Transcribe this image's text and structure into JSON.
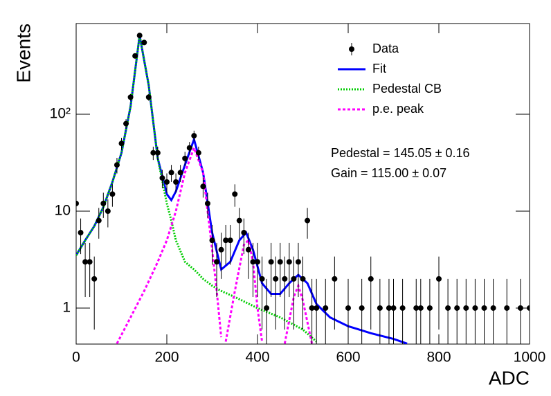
{
  "chart_data": {
    "type": "scatter",
    "x_label": "ADC",
    "y_label": "Events",
    "xlim": [
      0,
      1000
    ],
    "ylim": [
      0.425,
      863
    ],
    "log_y": true,
    "xticks": [
      0,
      200,
      400,
      600,
      800,
      1000
    ],
    "yticks": [
      1,
      10,
      {
        "value": 100,
        "label": "10²"
      }
    ],
    "legend_position": "upper right",
    "annotations": [
      "Pedestal = 145.05 ± 0.16",
      "Gain = 115.00 ± 0.07"
    ],
    "series": [
      {
        "name": "Data",
        "kind": "points",
        "color": "#000000",
        "x": [
          0,
          10,
          20,
          30,
          40,
          50,
          60,
          70,
          80,
          90,
          100,
          110,
          120,
          130,
          140,
          150,
          160,
          170,
          180,
          190,
          200,
          210,
          220,
          230,
          240,
          250,
          260,
          270,
          280,
          290,
          300,
          310,
          320,
          330,
          340,
          350,
          360,
          370,
          380,
          390,
          400,
          410,
          420,
          430,
          440,
          450,
          460,
          470,
          480,
          490,
          500,
          510,
          520,
          530,
          550,
          570,
          600,
          630,
          650,
          670,
          690,
          700,
          720,
          750,
          760,
          780,
          800,
          820,
          840,
          860,
          880,
          900,
          920,
          950,
          980,
          1000
        ],
        "values": [
          12,
          6,
          3,
          3,
          2,
          8,
          12,
          10,
          15,
          30,
          50,
          80,
          150,
          400,
          650,
          550,
          150,
          40,
          40,
          22,
          20,
          25,
          20,
          25,
          35,
          45,
          60,
          40,
          18,
          12,
          5,
          3,
          4,
          5,
          5,
          15,
          8,
          6,
          4,
          3,
          3,
          2,
          1,
          3,
          2,
          3,
          2,
          3,
          2,
          3,
          2,
          8,
          1,
          1,
          1,
          2,
          1,
          1,
          2,
          1,
          1,
          1,
          1,
          1,
          1,
          1,
          2,
          1,
          1,
          1,
          1,
          1,
          1,
          1,
          1,
          1
        ],
        "errors": [
          3.5,
          2.4,
          1.7,
          1.7,
          1.4,
          2.8,
          3.5,
          3.2,
          3.9,
          5.5,
          7.1,
          8.9,
          12,
          20,
          25,
          23,
          12,
          6.3,
          6.3,
          4.7,
          4.5,
          5,
          4.5,
          5,
          5.9,
          6.7,
          7.7,
          6.3,
          4.2,
          3.5,
          2.2,
          1.7,
          2,
          2.2,
          2.2,
          3.9,
          2.8,
          2.4,
          2,
          1.7,
          1.7,
          1.4,
          1,
          1.7,
          1.4,
          1.7,
          1.4,
          1.7,
          1.4,
          1.7,
          1.4,
          2.8,
          1,
          1,
          1,
          1.4,
          1,
          1,
          1.4,
          1,
          1,
          1,
          1,
          1,
          1,
          1,
          1.4,
          1,
          1,
          1,
          1,
          1,
          1,
          1,
          1,
          1
        ]
      },
      {
        "name": "Fit",
        "kind": "line",
        "color": "#0000ff",
        "dash": "solid",
        "x": [
          0,
          20,
          40,
          60,
          80,
          100,
          120,
          140,
          160,
          180,
          200,
          210,
          220,
          240,
          260,
          280,
          300,
          320,
          340,
          360,
          375,
          390,
          410,
          430,
          450,
          470,
          490,
          510,
          530,
          560,
          600,
          650,
          700,
          730
        ],
        "values": [
          3.5,
          5,
          7,
          11,
          20,
          40,
          120,
          650,
          200,
          35,
          15,
          13,
          16,
          30,
          55,
          25,
          6,
          2.5,
          3,
          5,
          6,
          4,
          1.8,
          1.4,
          1.4,
          1.8,
          2.2,
          1.8,
          1.1,
          0.8,
          0.65,
          0.55,
          0.48,
          0.43
        ]
      },
      {
        "name": "Pedestal CB",
        "kind": "line",
        "color": "#00cc00",
        "dash": "dotted",
        "x": [
          0,
          20,
          40,
          60,
          80,
          100,
          120,
          140,
          160,
          180,
          200,
          210,
          220,
          240,
          260,
          280,
          300,
          320,
          350,
          400,
          450,
          500,
          530
        ],
        "values": [
          3.5,
          5,
          7,
          11,
          20,
          40,
          120,
          650,
          200,
          35,
          12,
          8,
          5,
          3,
          2.5,
          2,
          1.7,
          1.5,
          1.3,
          1,
          0.8,
          0.6,
          0.45
        ]
      },
      {
        "name": "p.e. peak",
        "kind": "line",
        "color": "#ff00ff",
        "dash": "dashed",
        "x": [
          90,
          120,
          150,
          180,
          200,
          220,
          240,
          260,
          280,
          300,
          310,
          320,
          325,
          330,
          350,
          370,
          380,
          390,
          400,
          410,
          440,
          460,
          480,
          490,
          500,
          520
        ],
        "values": [
          0.43,
          0.8,
          1.5,
          3,
          5,
          10,
          25,
          45,
          25,
          4,
          1.5,
          0.5,
          null,
          0.45,
          1.5,
          4.5,
          5,
          3,
          1,
          0.45,
          null,
          0.43,
          1.3,
          1.7,
          1.2,
          0.43
        ]
      }
    ]
  }
}
